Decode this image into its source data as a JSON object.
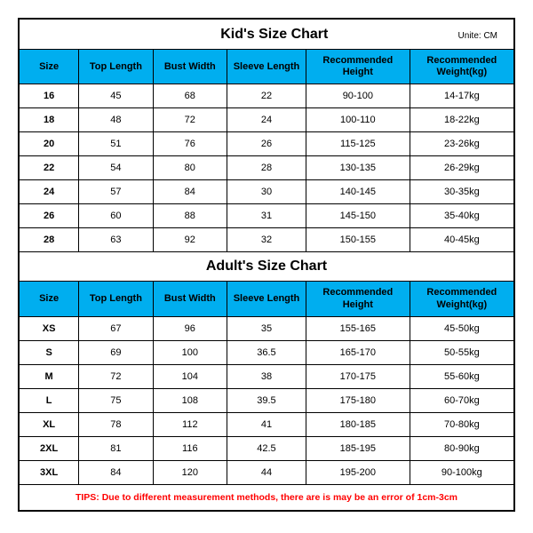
{
  "kids": {
    "title": "Kid's Size Chart",
    "unit": "Unite: CM",
    "columns": [
      "Size",
      "Top Length",
      "Bust Width",
      "Sleeve Length",
      "Recommended Height",
      "Recommended Weight(kg)"
    ],
    "rows": [
      [
        "16",
        "45",
        "68",
        "22",
        "90-100",
        "14-17kg"
      ],
      [
        "18",
        "48",
        "72",
        "24",
        "100-110",
        "18-22kg"
      ],
      [
        "20",
        "51",
        "76",
        "26",
        "115-125",
        "23-26kg"
      ],
      [
        "22",
        "54",
        "80",
        "28",
        "130-135",
        "26-29kg"
      ],
      [
        "24",
        "57",
        "84",
        "30",
        "140-145",
        "30-35kg"
      ],
      [
        "26",
        "60",
        "88",
        "31",
        "145-150",
        "35-40kg"
      ],
      [
        "28",
        "63",
        "92",
        "32",
        "150-155",
        "40-45kg"
      ]
    ]
  },
  "adults": {
    "title": "Adult's Size Chart",
    "columns": [
      "Size",
      "Top Length",
      "Bust Width",
      "Sleeve Length",
      "Recommended Height",
      "Recommended Weight(kg)"
    ],
    "rows": [
      [
        "XS",
        "67",
        "96",
        "35",
        "155-165",
        "45-50kg"
      ],
      [
        "S",
        "69",
        "100",
        "36.5",
        "165-170",
        "50-55kg"
      ],
      [
        "M",
        "72",
        "104",
        "38",
        "170-175",
        "55-60kg"
      ],
      [
        "L",
        "75",
        "108",
        "39.5",
        "175-180",
        "60-70kg"
      ],
      [
        "XL",
        "78",
        "112",
        "41",
        "180-185",
        "70-80kg"
      ],
      [
        "2XL",
        "81",
        "116",
        "42.5",
        "185-195",
        "80-90kg"
      ],
      [
        "3XL",
        "84",
        "120",
        "44",
        "195-200",
        "90-100kg"
      ]
    ]
  },
  "tips": "TIPS: Due to different measurement methods, there are is may be an error of 1cm-3cm",
  "colors": {
    "header_bg": "#00aeef",
    "border": "#000000",
    "tips_color": "#ff0000",
    "background": "#ffffff"
  }
}
